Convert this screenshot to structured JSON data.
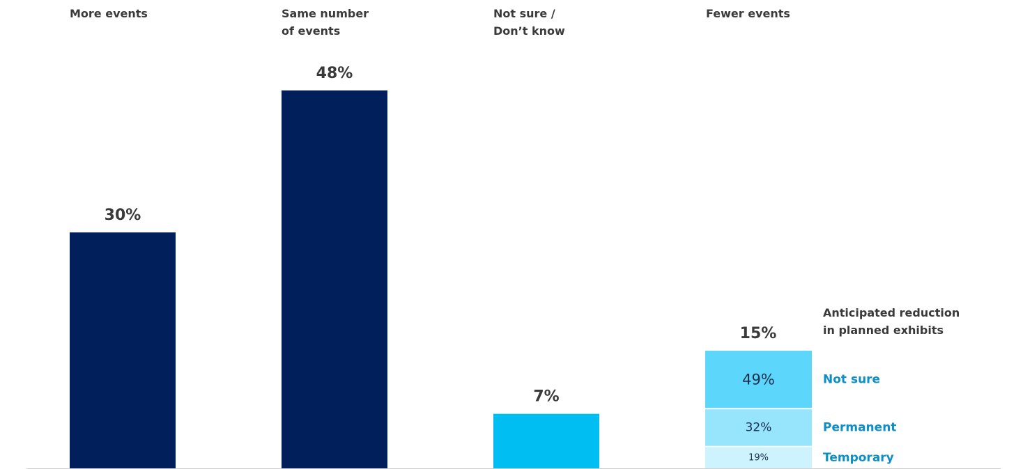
{
  "chart_data": {
    "type": "bar",
    "categories": [
      "More events",
      "Same number\nof events",
      "Not sure /\nDon’t know",
      "Fewer events"
    ],
    "values": [
      30,
      48,
      7,
      15
    ],
    "value_labels": [
      "30%",
      "48%",
      "7%",
      "15%"
    ],
    "ylim": [
      0,
      56
    ],
    "grid": false,
    "colors": {
      "dark_navy": "#001F5B",
      "bright_cyan": "#00BEF2",
      "stack_dark": "#5CD7FB",
      "stack_mid": "#97E5FC",
      "stack_light": "#CDF3FE",
      "label_text": "#3A3A3A",
      "legend_text": "#0B8FC6",
      "stack_value_text": "#1A2E4F",
      "axis": "#CFCFCF"
    },
    "bar_colors": [
      "#001F5B",
      "#001F5B",
      "#00BEF2",
      null
    ],
    "breakdown": {
      "category": "Fewer events",
      "title": "Anticipated reduction\nin planned exhibits",
      "series": [
        {
          "name": "Temporary",
          "value": 19,
          "label": "19%",
          "color": "#CDF3FE"
        },
        {
          "name": "Permanent",
          "value": 32,
          "label": "32%",
          "color": "#97E5FC"
        },
        {
          "name": "Not sure",
          "value": 49,
          "label": "49%",
          "color": "#5CD7FB"
        }
      ]
    }
  }
}
